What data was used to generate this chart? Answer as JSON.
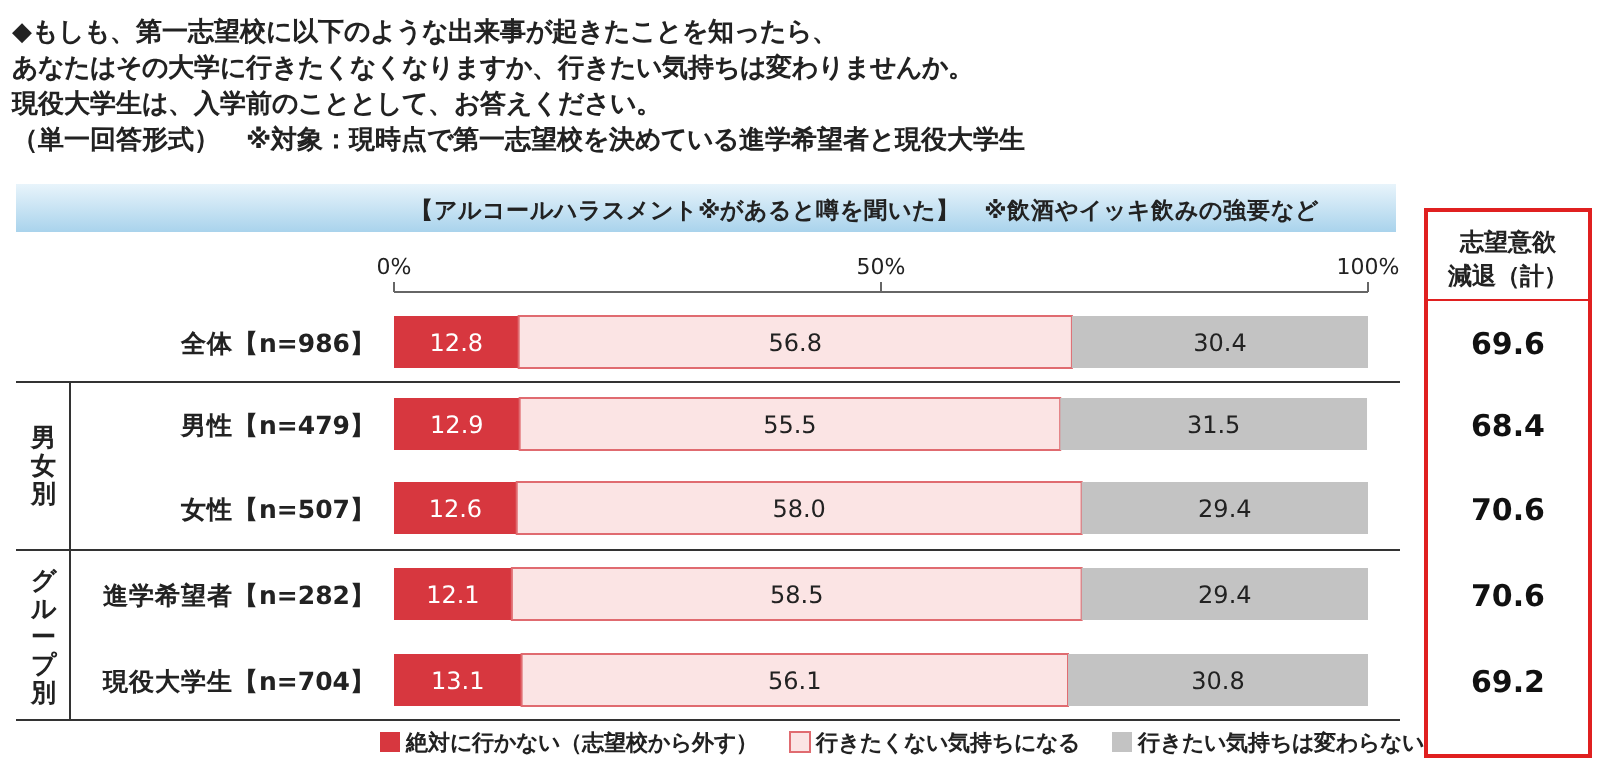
{
  "chart_data": {
    "type": "bar",
    "orientation": "horizontal",
    "stacked": true,
    "title": "◆もしも、第一志望校に以下のような出来事が起きたことを知ったら、あなたはその大学に行きたくなくなりますか、行きたい気持ちは変わりませんか。現役大学生は、入学前のこととして、お答えください。",
    "subtitle": "（単一回答形式）　※対象：現時点で第一志望校を決めている進学希望者と現役大学生",
    "categories": [
      "全体【n=986】",
      "男性【n=479】",
      "女性【n=507】",
      "進学希望者【n=282】",
      "現役大学生【n=704】"
    ],
    "series": [
      {
        "name": "絶対に行かない（志望校から外す）",
        "color": "#d7373f",
        "values": [
          12.8,
          12.9,
          12.6,
          12.1,
          13.1
        ]
      },
      {
        "name": "行きたくない気持ちになる",
        "color": "#fbe4e4",
        "values": [
          56.8,
          55.5,
          58.0,
          58.5,
          56.1
        ],
        "value_labels": [
          "56.8",
          "55.5",
          "58.0",
          "58.5",
          "56.1"
        ]
      },
      {
        "name": "行きたい気持ちは変わらない",
        "color": "#c3c3c3",
        "values": [
          30.4,
          31.5,
          29.4,
          29.4,
          30.8
        ]
      }
    ],
    "xlim": [
      0,
      100
    ],
    "xticks": [
      {
        "value": 0,
        "label": "0%"
      },
      {
        "value": 50,
        "label": "50%"
      },
      {
        "value": 100,
        "label": "100%"
      }
    ],
    "data_labels": true,
    "annotations": [
      "【アルコールハラスメント※があると噂を聞いた】　※飲酒やイッキ飲みの強要など",
      "志望意欲減退（計）",
      "男女別",
      "グループ別",
      "69.6",
      "68.4",
      "70.6",
      "70.6",
      "69.2"
    ],
    "legend": "bottom",
    "grid": false
  }
}
